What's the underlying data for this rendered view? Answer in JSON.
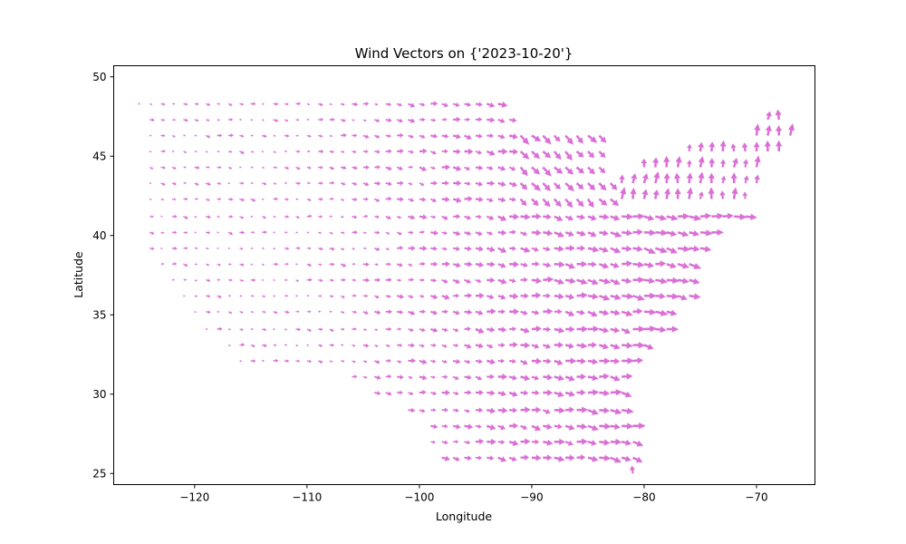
{
  "chart_data": {
    "type": "scatter",
    "subtype": "quiver",
    "title": "Wind Vectors  on {'2023-10-20'}",
    "xlabel": "Longitude",
    "ylabel": "Latitude",
    "xlim": [
      -127.2,
      -64.8
    ],
    "ylim": [
      24.3,
      50.7
    ],
    "xticks": [
      -120,
      -110,
      -100,
      -90,
      -80,
      -70
    ],
    "yticks": [
      25,
      30,
      35,
      40,
      45,
      50
    ],
    "xtick_labels": [
      "−120",
      "−110",
      "−100",
      "−90",
      "−80",
      "−70"
    ],
    "ytick_labels": [
      "25",
      "30",
      "35",
      "40",
      "45",
      "50"
    ],
    "grid": false,
    "arrow_color": "#da70d6",
    "grid_spacing_deg": 1.0,
    "arrow_pixels_per_unit": 4.0,
    "rows": [
      {
        "lat": 48.3,
        "lon_start": -125.0,
        "lon_end": -93.0,
        "flow": "east"
      },
      {
        "lat": 47.3,
        "lon_start": -124.0,
        "lon_end": -92.0,
        "flow": "east"
      },
      {
        "lat": 46.3,
        "lon_start": -124.0,
        "lon_end": -84.0,
        "flow": "east"
      },
      {
        "lat": 45.3,
        "lon_start": -124.0,
        "lon_end": -84.0,
        "flow": "east"
      },
      {
        "lat": 44.3,
        "lon_start": -124.0,
        "lon_end": -84.0,
        "flow": "east"
      },
      {
        "lat": 43.3,
        "lon_start": -124.0,
        "lon_end": -83.0,
        "flow": "east"
      },
      {
        "lat": 42.3,
        "lon_start": -124.0,
        "lon_end": -83.0,
        "flow": "east"
      },
      {
        "lat": 41.2,
        "lon_start": -124.0,
        "lon_end": -71.0,
        "flow": "east"
      },
      {
        "lat": 40.2,
        "lon_start": -124.0,
        "lon_end": -74.0,
        "flow": "east"
      },
      {
        "lat": 39.2,
        "lon_start": -124.0,
        "lon_end": -75.0,
        "flow": "east"
      },
      {
        "lat": 38.2,
        "lon_start": -123.0,
        "lon_end": -76.0,
        "flow": "east"
      },
      {
        "lat": 37.2,
        "lon_start": -122.0,
        "lon_end": -76.0,
        "flow": "east"
      },
      {
        "lat": 36.2,
        "lon_start": -121.0,
        "lon_end": -76.0,
        "flow": "east"
      },
      {
        "lat": 35.2,
        "lon_start": -120.0,
        "lon_end": -78.0,
        "flow": "east"
      },
      {
        "lat": 34.1,
        "lon_start": -119.0,
        "lon_end": -78.0,
        "flow": "east"
      },
      {
        "lat": 33.1,
        "lon_start": -117.0,
        "lon_end": -80.0,
        "flow": "east"
      },
      {
        "lat": 32.1,
        "lon_start": -116.0,
        "lon_end": -81.0,
        "flow": "east"
      },
      {
        "lat": 31.1,
        "lon_start": -106.0,
        "lon_end": -82.0,
        "flow": "east"
      },
      {
        "lat": 30.1,
        "lon_start": -104.0,
        "lon_end": -82.0,
        "flow": "east"
      },
      {
        "lat": 29.0,
        "lon_start": -101.0,
        "lon_end": -82.0,
        "flow": "east"
      },
      {
        "lat": 28.0,
        "lon_start": -99.0,
        "lon_end": -81.0,
        "flow": "east"
      },
      {
        "lat": 27.0,
        "lon_start": -99.0,
        "lon_end": -81.0,
        "flow": "east"
      },
      {
        "lat": 26.0,
        "lon_start": -98.0,
        "lon_end": -81.0,
        "flow": "east"
      },
      {
        "lat": 25.0,
        "lon_start": -81.0,
        "lon_end": -81.0,
        "flow": "north"
      }
    ],
    "northeast_rows": [
      {
        "lat": 47.3,
        "lon_start": -69.0,
        "lon_end": -68.0
      },
      {
        "lat": 46.3,
        "lon_start": -70.0,
        "lon_end": -67.0
      },
      {
        "lat": 45.3,
        "lon_start": -76.0,
        "lon_end": -68.0
      },
      {
        "lat": 44.3,
        "lon_start": -80.0,
        "lon_end": -70.0
      },
      {
        "lat": 43.3,
        "lon_start": -82.0,
        "lon_end": -70.0
      },
      {
        "lat": 42.3,
        "lon_start": -82.0,
        "lon_end": -71.0
      }
    ]
  }
}
